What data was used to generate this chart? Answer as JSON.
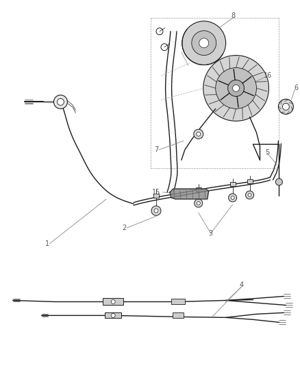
{
  "bg_color": "#ffffff",
  "line_color": "#1a1a1a",
  "label_color": "#555555",
  "leader_color": "#888888",
  "fig_width": 4.38,
  "fig_height": 5.33,
  "dpi": 100,
  "font_size": 7.0,
  "lw_cable": 1.0,
  "lw_thin": 0.6,
  "lw_thick": 1.5
}
